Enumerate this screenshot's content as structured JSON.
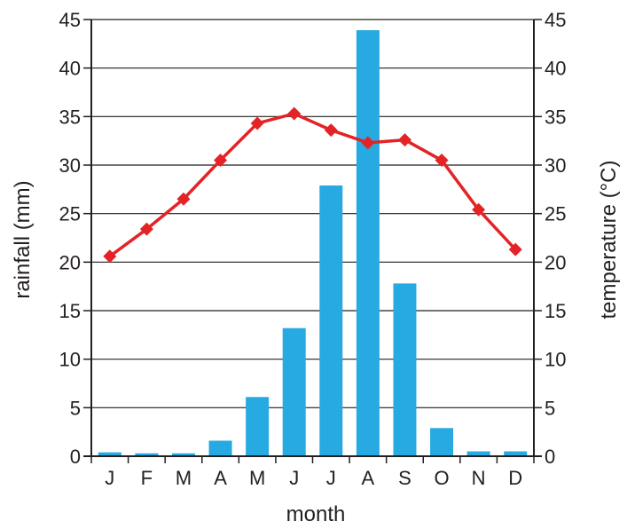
{
  "chart_data": {
    "type": "bar",
    "categories": [
      "J",
      "F",
      "M",
      "A",
      "M",
      "J",
      "J",
      "A",
      "S",
      "O",
      "N",
      "D"
    ],
    "series": [
      {
        "type": "bar",
        "axis": "left",
        "color": "#27aae1",
        "values": [
          0.4,
          0.3,
          0.3,
          1.6,
          6.1,
          13.2,
          27.9,
          43.9,
          17.8,
          2.9,
          0.5,
          0.5
        ]
      },
      {
        "type": "line",
        "axis": "right",
        "color": "#e42326",
        "marker": "diamond",
        "values": [
          20.6,
          23.4,
          26.5,
          30.5,
          34.3,
          35.3,
          33.6,
          32.3,
          32.6,
          30.5,
          25.4,
          21.3
        ]
      }
    ],
    "xlabel": "month",
    "ylabel": "rainfall (mm)",
    "y2label": "temperature (°C)",
    "ylim": [
      0,
      45
    ],
    "y2lim": [
      0,
      45
    ],
    "yticks": [
      0,
      5,
      10,
      15,
      20,
      25,
      30,
      35,
      40,
      45
    ],
    "grid": true,
    "legend": "none"
  }
}
